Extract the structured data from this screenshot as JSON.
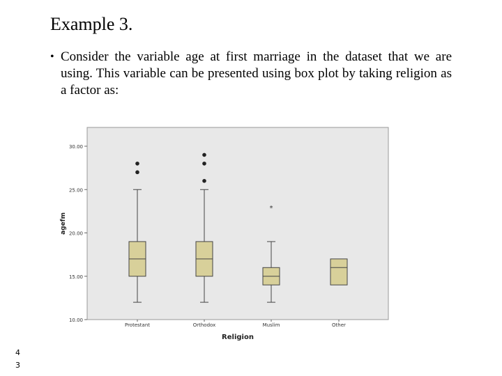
{
  "slide": {
    "title": "Example 3.",
    "bullet": "Consider the variable age at first marriage in the dataset that we are using. This variable can be presented using box plot by taking religion as a factor as:",
    "slide_number": "43"
  },
  "chart_data": {
    "type": "box",
    "xlabel": "Religion",
    "ylabel": "agefm",
    "ylim": [
      10,
      30
    ],
    "yticks": [
      "10.00",
      "15.00",
      "20.00",
      "25.00",
      "30.00"
    ],
    "grid": false,
    "categories": [
      "Protestant",
      "Orthodox",
      "Muslim",
      "Other"
    ],
    "boxes": [
      {
        "whisker_low": 12,
        "q1": 15,
        "median": 17,
        "q3": 19,
        "whisker_high": 25,
        "outliers": [
          27,
          28
        ],
        "extremes": []
      },
      {
        "whisker_low": 12,
        "q1": 15,
        "median": 17,
        "q3": 19,
        "whisker_high": 25,
        "outliers": [
          26,
          28,
          29
        ],
        "extremes": []
      },
      {
        "whisker_low": 12,
        "q1": 14,
        "median": 15,
        "q3": 16,
        "whisker_high": 19,
        "outliers": [],
        "extremes": [
          23
        ]
      },
      {
        "whisker_low": 14,
        "q1": 14,
        "median": 16,
        "q3": 17,
        "whisker_high": 17,
        "outliers": [],
        "extremes": []
      }
    ],
    "colors": {
      "box_fill": "#d8d09a",
      "plot_bg": "#e8e8e8",
      "stroke": "#444444"
    }
  }
}
